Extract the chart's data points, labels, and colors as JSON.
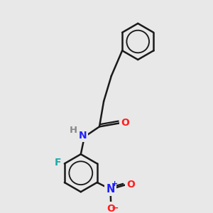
{
  "background_color": "#e8e8e8",
  "bond_color": "#1a1a1a",
  "atom_colors": {
    "N": "#2020ff",
    "O": "#ff2020",
    "F": "#20aaaa",
    "H": "#888888",
    "C": "#1a1a1a"
  },
  "bond_width": 1.8,
  "figsize": [
    3.0,
    3.0
  ],
  "dpi": 100
}
